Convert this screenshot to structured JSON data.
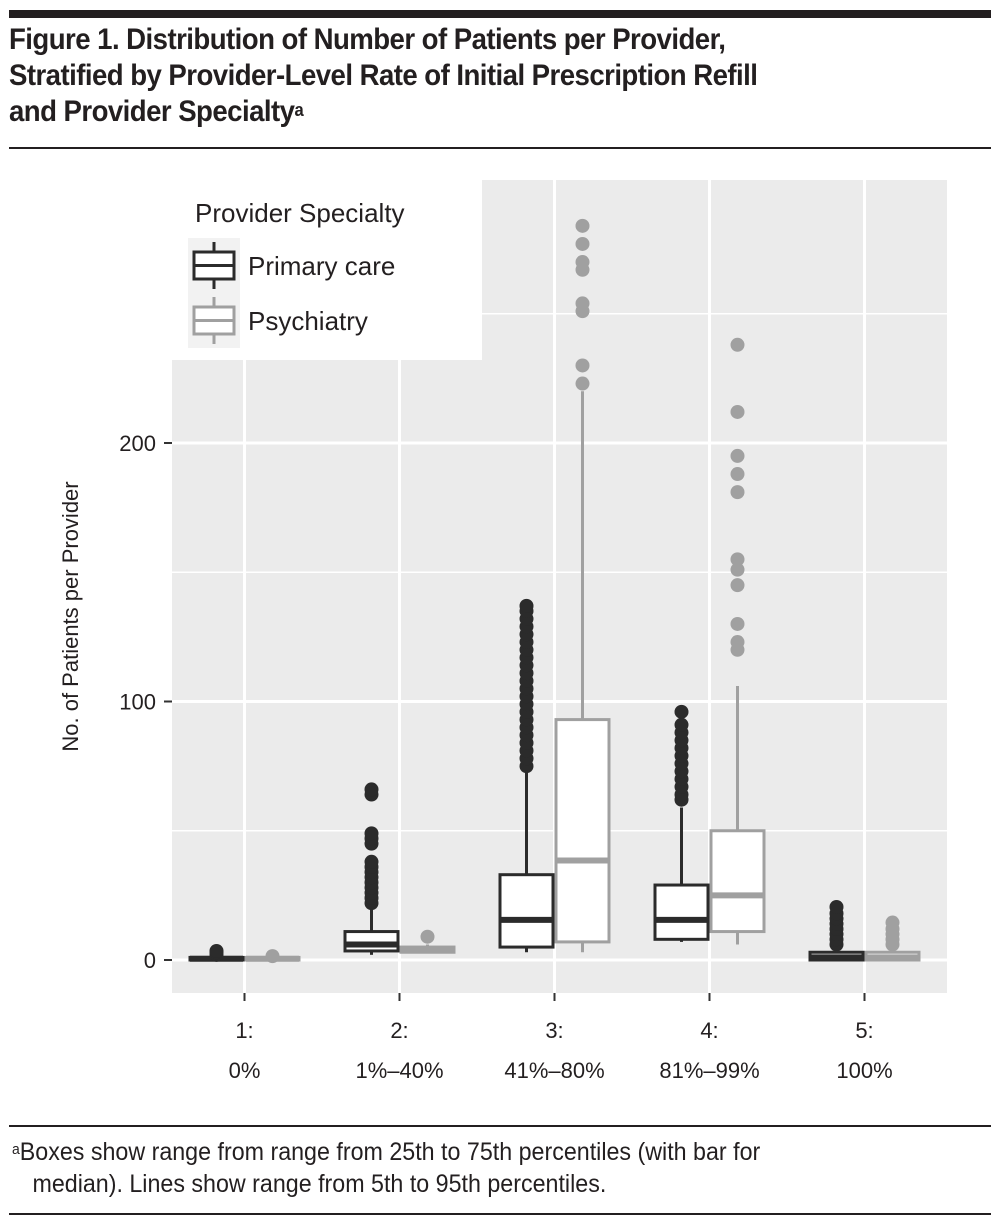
{
  "figure": {
    "title_line1": "Figure 1. Distribution of Number of Patients per Provider,",
    "title_line2": "Stratified by Provider-Level Rate of Initial Prescription Refill",
    "title_line3": "and Provider Specialty",
    "title_superscript": "a",
    "footnote_marker": "a",
    "footnote_line1": "Boxes show range from range from 25th to 75th percentiles (with bar for",
    "footnote_line2": "median). Lines show range from 5th to 95th percentiles."
  },
  "colors": {
    "primary_care": "#2b2b2b",
    "psychiatry": "#a0a0a0",
    "panel_bg": "#ebebeb",
    "grid": "#ffffff"
  },
  "chart_data": {
    "type": "boxplot",
    "title": "Distribution of Number of Patients per Provider, Stratified by Provider-Level Rate of Initial Prescription Refill and Provider Specialty",
    "xlabel": "",
    "ylabel": "No. of Patients per Provider",
    "ylim": [
      -13,
      302
    ],
    "yticks": [
      0,
      100,
      200
    ],
    "yminor": [
      50,
      150,
      250
    ],
    "grid": true,
    "legend": {
      "title": "Provider Specialty",
      "placement": "top-left",
      "entries": [
        "Primary care",
        "Psychiatry"
      ]
    },
    "categories": [
      {
        "line1": "1:",
        "line2": "0%"
      },
      {
        "line1": "2:",
        "line2": "1%–40%"
      },
      {
        "line1": "3:",
        "line2": "41%–80%"
      },
      {
        "line1": "4:",
        "line2": "81%–99%"
      },
      {
        "line1": "5:",
        "line2": "100%"
      }
    ],
    "series": [
      {
        "name": "Primary care",
        "boxes": [
          {
            "whisker_low": 0,
            "q1": 0,
            "median": 0.5,
            "q3": 1,
            "whisker_high": 1,
            "outliers": [
              2,
              3,
              3.5
            ]
          },
          {
            "whisker_low": 2,
            "q1": 3.5,
            "median": 6,
            "q3": 11,
            "whisker_high": 21,
            "outliers": [
              22,
              24,
              26,
              28,
              30,
              32,
              34,
              36,
              38,
              45,
              47,
              49,
              64,
              66
            ]
          },
          {
            "whisker_low": 3,
            "q1": 5,
            "median": 15.5,
            "q3": 33,
            "whisker_high": 73,
            "outliers": [
              75,
              78,
              81,
              84,
              87,
              90,
              93,
              96,
              99,
              102,
              105,
              108,
              111,
              114,
              117,
              120,
              123,
              126,
              129,
              132,
              135,
              137
            ]
          },
          {
            "whisker_low": 7,
            "q1": 8,
            "median": 15.5,
            "q3": 29,
            "whisker_high": 59,
            "outliers": [
              62,
              64,
              67,
              70,
              73,
              76,
              79,
              82,
              85,
              88,
              91,
              96
            ]
          },
          {
            "whisker_low": 0,
            "q1": 0,
            "median": 1,
            "q3": 3,
            "whisker_high": 5,
            "outliers": [
              6,
              8,
              10,
              12,
              14,
              16,
              18,
              20.5
            ]
          }
        ]
      },
      {
        "name": "Psychiatry",
        "boxes": [
          {
            "whisker_low": 0,
            "q1": 0,
            "median": 0.5,
            "q3": 1,
            "whisker_high": 1,
            "outliers": [
              1.5
            ]
          },
          {
            "whisker_low": 3,
            "q1": 3,
            "median": 4,
            "q3": 5,
            "whisker_high": 6,
            "outliers": [
              9
            ]
          },
          {
            "whisker_low": 3,
            "q1": 7,
            "median": 38.5,
            "q3": 93,
            "whisker_high": 220,
            "outliers": [
              223,
              230,
              251,
              254,
              267,
              270,
              277,
              284
            ]
          },
          {
            "whisker_low": 6,
            "q1": 11,
            "median": 25,
            "q3": 50,
            "whisker_high": 106,
            "outliers": [
              120,
              123,
              130,
              145,
              151,
              155,
              181,
              188,
              195,
              212,
              238
            ]
          },
          {
            "whisker_low": 0,
            "q1": 0,
            "median": 1,
            "q3": 3,
            "whisker_high": 5,
            "outliers": [
              6,
              8,
              10,
              12,
              14.5
            ]
          }
        ]
      }
    ]
  }
}
